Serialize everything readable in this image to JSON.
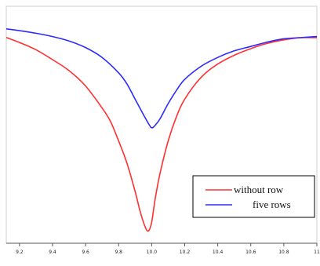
{
  "chart_data": {
    "type": "line",
    "title": "",
    "xlabel": "",
    "ylabel": "",
    "xlim": [
      9.12,
      11.0
    ],
    "ylim": [
      0.0,
      1.0
    ],
    "x_ticks": [
      "9.2",
      "9.4",
      "9.6",
      "9.8",
      "10.0",
      "10.2",
      "10.4",
      "10.6",
      "10.8",
      "11"
    ],
    "y_tick_labels_visible": false,
    "grid": false,
    "legend": {
      "placement": "bottom-right"
    },
    "series": [
      {
        "name": "without row",
        "color": "#ff3030",
        "x": [
          9.12,
          9.2,
          9.3,
          9.4,
          9.5,
          9.6,
          9.7,
          9.75,
          9.8,
          9.85,
          9.9,
          9.93,
          9.96,
          9.98,
          10.0,
          10.02,
          10.05,
          10.1,
          10.15,
          10.2,
          10.3,
          10.4,
          10.5,
          10.6,
          10.7,
          10.8,
          10.9,
          11.0
        ],
        "y": [
          0.901,
          0.878,
          0.845,
          0.8,
          0.75,
          0.68,
          0.58,
          0.52,
          0.43,
          0.33,
          0.2,
          0.11,
          0.04,
          0.02,
          0.06,
          0.16,
          0.28,
          0.43,
          0.54,
          0.62,
          0.72,
          0.78,
          0.82,
          0.85,
          0.874,
          0.89,
          0.9,
          0.9
        ]
      },
      {
        "name": "five rows",
        "color": "#2b2bff",
        "x": [
          9.12,
          9.2,
          9.3,
          9.4,
          9.5,
          9.6,
          9.7,
          9.8,
          9.85,
          9.9,
          9.95,
          9.98,
          10.0,
          10.02,
          10.05,
          10.1,
          10.15,
          10.2,
          10.3,
          10.4,
          10.5,
          10.6,
          10.7,
          10.8,
          10.9,
          11.0
        ],
        "y": [
          0.94,
          0.932,
          0.92,
          0.905,
          0.885,
          0.855,
          0.81,
          0.74,
          0.69,
          0.62,
          0.55,
          0.51,
          0.49,
          0.5,
          0.53,
          0.6,
          0.66,
          0.71,
          0.77,
          0.81,
          0.84,
          0.86,
          0.88,
          0.895,
          0.9,
          0.905
        ]
      }
    ]
  }
}
